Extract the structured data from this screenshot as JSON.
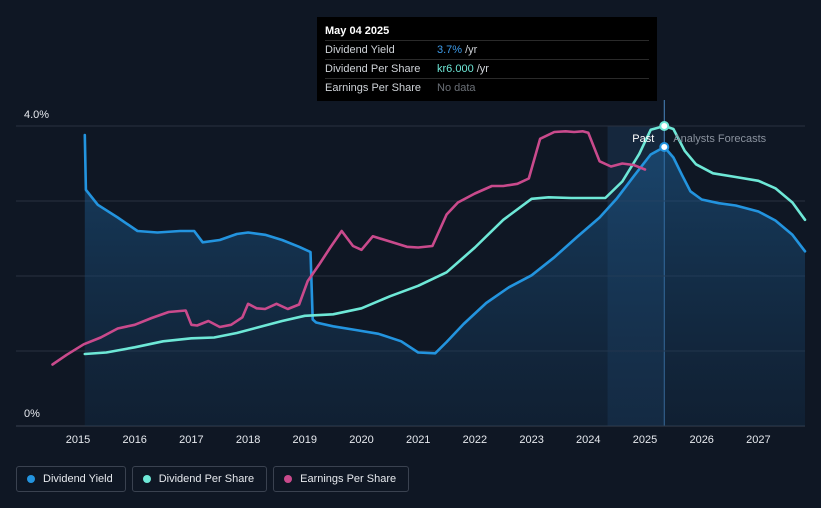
{
  "colors": {
    "background": "#0f1724",
    "dividend_yield": "#2394df",
    "dividend_per_share": "#6ee8d7",
    "earnings_per_share": "#c94a8c",
    "grid": "#2a3140",
    "forecast_band": "#1b3552"
  },
  "tooltip": {
    "date": "May 04 2025",
    "rows": [
      {
        "name": "Dividend Yield",
        "value": "3.7%",
        "unit": "/yr",
        "color": "#3d9be9"
      },
      {
        "name": "Dividend Per Share",
        "value": "kr6.000",
        "unit": "/yr",
        "color": "#6ee8d7"
      },
      {
        "name": "Earnings Per Share",
        "value": "No data",
        "unit": "",
        "color": "#6b7077"
      }
    ]
  },
  "regions": {
    "past_label": "Past",
    "forecast_label": "Analysts Forecasts"
  },
  "legend": [
    {
      "label": "Dividend Yield",
      "color": "#2394df",
      "icon": "circle-dot-icon"
    },
    {
      "label": "Dividend Per Share",
      "color": "#6ee8d7",
      "icon": "circle-dot-icon"
    },
    {
      "label": "Earnings Per Share",
      "color": "#c94a8c",
      "icon": "circle-dot-icon"
    }
  ],
  "chart_data": {
    "type": "line",
    "x_ticks": [
      "2015",
      "2016",
      "2017",
      "2018",
      "2019",
      "2020",
      "2021",
      "2022",
      "2023",
      "2024",
      "2025",
      "2026",
      "2027"
    ],
    "y_ticks": [
      "0%",
      "4.0%"
    ],
    "ylim": [
      0,
      4.0
    ],
    "xlim": [
      2014.45,
      2028
    ],
    "past_end": 2025.34,
    "forecast_band_start": 2024.34,
    "grid": true,
    "legend_position": "bottom-left",
    "series": [
      {
        "name": "Dividend Yield",
        "color": "#2394df",
        "area": true,
        "x": [
          2015.12,
          2015.14,
          2015.35,
          2015.7,
          2016.05,
          2016.4,
          2016.8,
          2017.05,
          2017.2,
          2017.5,
          2017.8,
          2018.0,
          2018.3,
          2018.6,
          2018.9,
          2019.1,
          2019.14,
          2019.2,
          2019.5,
          2019.9,
          2020.3,
          2020.7,
          2021.0,
          2021.3,
          2021.5,
          2021.8,
          2022.2,
          2022.6,
          2023.0,
          2023.4,
          2023.8,
          2024.2,
          2024.5,
          2024.8,
          2025.1,
          2025.34,
          2025.5,
          2025.65,
          2025.8,
          2026.0,
          2026.3,
          2026.6,
          2027.0,
          2027.3,
          2027.6,
          2028.0
        ],
        "y": [
          3.88,
          3.15,
          2.95,
          2.78,
          2.6,
          2.58,
          2.6,
          2.6,
          2.45,
          2.48,
          2.56,
          2.58,
          2.55,
          2.48,
          2.39,
          2.32,
          1.42,
          1.38,
          1.33,
          1.28,
          1.23,
          1.13,
          0.98,
          0.97,
          1.12,
          1.36,
          1.64,
          1.85,
          2.01,
          2.25,
          2.52,
          2.78,
          3.03,
          3.33,
          3.62,
          3.72,
          3.58,
          3.35,
          3.13,
          3.02,
          2.97,
          2.94,
          2.86,
          2.74,
          2.55,
          2.33
        ]
      },
      {
        "name": "Dividend Per Share",
        "color": "#6ee8d7",
        "area": false,
        "x": [
          2015.12,
          2015.5,
          2016.0,
          2016.5,
          2017.0,
          2017.4,
          2017.8,
          2018.2,
          2018.6,
          2019.0,
          2019.5,
          2020.0,
          2020.5,
          2021.0,
          2021.5,
          2022.0,
          2022.5,
          2023.0,
          2023.3,
          2023.7,
          2024.0,
          2024.3,
          2024.6,
          2024.9,
          2025.1,
          2025.34,
          2025.5,
          2025.7,
          2025.9,
          2026.2,
          2026.6,
          2027.0,
          2027.3,
          2027.6,
          2028.0
        ],
        "y": [
          0.96,
          0.98,
          1.05,
          1.13,
          1.17,
          1.18,
          1.24,
          1.32,
          1.4,
          1.47,
          1.49,
          1.57,
          1.73,
          1.87,
          2.05,
          2.38,
          2.75,
          3.03,
          3.05,
          3.04,
          3.04,
          3.04,
          3.26,
          3.63,
          3.95,
          4.0,
          3.96,
          3.67,
          3.49,
          3.37,
          3.32,
          3.27,
          3.17,
          2.98,
          2.75
        ]
      },
      {
        "name": "Earnings Per Share",
        "color": "#c94a8c",
        "area": false,
        "x": [
          2014.55,
          2014.8,
          2015.1,
          2015.4,
          2015.7,
          2016.0,
          2016.3,
          2016.6,
          2016.9,
          2017.0,
          2017.1,
          2017.3,
          2017.5,
          2017.7,
          2017.9,
          2018.0,
          2018.15,
          2018.3,
          2018.5,
          2018.7,
          2018.9,
          2019.05,
          2019.25,
          2019.45,
          2019.65,
          2019.85,
          2020.0,
          2020.2,
          2020.5,
          2020.8,
          2021.0,
          2021.25,
          2021.5,
          2021.7,
          2022.0,
          2022.3,
          2022.5,
          2022.75,
          2022.95,
          2023.15,
          2023.4,
          2023.6,
          2023.75,
          2023.9,
          2024.0,
          2024.2,
          2024.4,
          2024.6,
          2024.8,
          2025.0
        ],
        "y": [
          0.82,
          0.95,
          1.09,
          1.18,
          1.3,
          1.35,
          1.44,
          1.52,
          1.54,
          1.35,
          1.34,
          1.4,
          1.32,
          1.35,
          1.45,
          1.63,
          1.57,
          1.56,
          1.63,
          1.56,
          1.62,
          1.93,
          2.15,
          2.38,
          2.6,
          2.4,
          2.35,
          2.53,
          2.46,
          2.39,
          2.38,
          2.4,
          2.82,
          2.98,
          3.1,
          3.2,
          3.2,
          3.23,
          3.3,
          3.83,
          3.92,
          3.93,
          3.92,
          3.93,
          3.91,
          3.53,
          3.46,
          3.5,
          3.48,
          3.42
        ]
      }
    ]
  }
}
